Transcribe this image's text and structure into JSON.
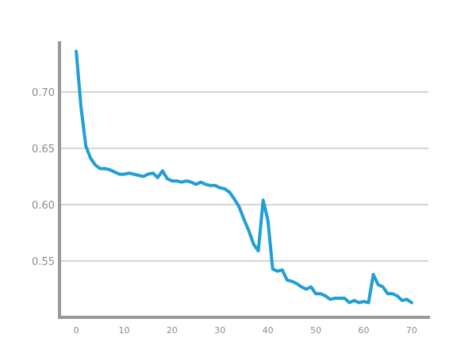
{
  "chart_data": {
    "type": "line",
    "title": "",
    "xlabel": "",
    "ylabel": "",
    "xlim": [
      -3.5,
      73.5
    ],
    "ylim": [
      0.5,
      0.745
    ],
    "x_ticks": [
      0,
      10,
      20,
      30,
      40,
      50,
      60,
      70
    ],
    "y_ticks": [
      0.55,
      0.6,
      0.65,
      0.7
    ],
    "y_tick_labels": [
      "0.55",
      "0.60",
      "0.65",
      "0.70"
    ],
    "grid": "horizontal",
    "legend": "none",
    "colors": {
      "line": "#1f9fd6",
      "grid": "#cccccc",
      "axis": "#999999",
      "tick_label": "#8c8c8c"
    },
    "series": [
      {
        "x": [
          0,
          1,
          2,
          3,
          4,
          5,
          6,
          7,
          8,
          9,
          10,
          11,
          12,
          13,
          14,
          15,
          16,
          17,
          18,
          19,
          20,
          21,
          22,
          23,
          24,
          25,
          26,
          27,
          28,
          29,
          30,
          31,
          32,
          33,
          34,
          35,
          36,
          37,
          38,
          39,
          40,
          41,
          42,
          43,
          44,
          45,
          46,
          47,
          48,
          49,
          50,
          51,
          52,
          53,
          54,
          55,
          56,
          57,
          58,
          59,
          60,
          61,
          62,
          63,
          64,
          65,
          66,
          67,
          68,
          69,
          70
        ],
        "y": [
          0.736,
          0.686,
          0.652,
          0.641,
          0.635,
          0.632,
          0.632,
          0.631,
          0.629,
          0.627,
          0.627,
          0.628,
          0.627,
          0.626,
          0.625,
          0.627,
          0.628,
          0.624,
          0.63,
          0.623,
          0.621,
          0.621,
          0.62,
          0.621,
          0.62,
          0.618,
          0.62,
          0.618,
          0.617,
          0.617,
          0.615,
          0.614,
          0.611,
          0.605,
          0.598,
          0.587,
          0.577,
          0.565,
          0.559,
          0.604,
          0.586,
          0.543,
          0.541,
          0.542,
          0.533,
          0.532,
          0.53,
          0.527,
          0.525,
          0.527,
          0.521,
          0.521,
          0.519,
          0.516,
          0.517,
          0.517,
          0.517,
          0.513,
          0.515,
          0.513,
          0.514,
          0.513,
          0.538,
          0.529,
          0.527,
          0.521,
          0.521,
          0.519,
          0.515,
          0.516,
          0.513
        ]
      }
    ]
  }
}
